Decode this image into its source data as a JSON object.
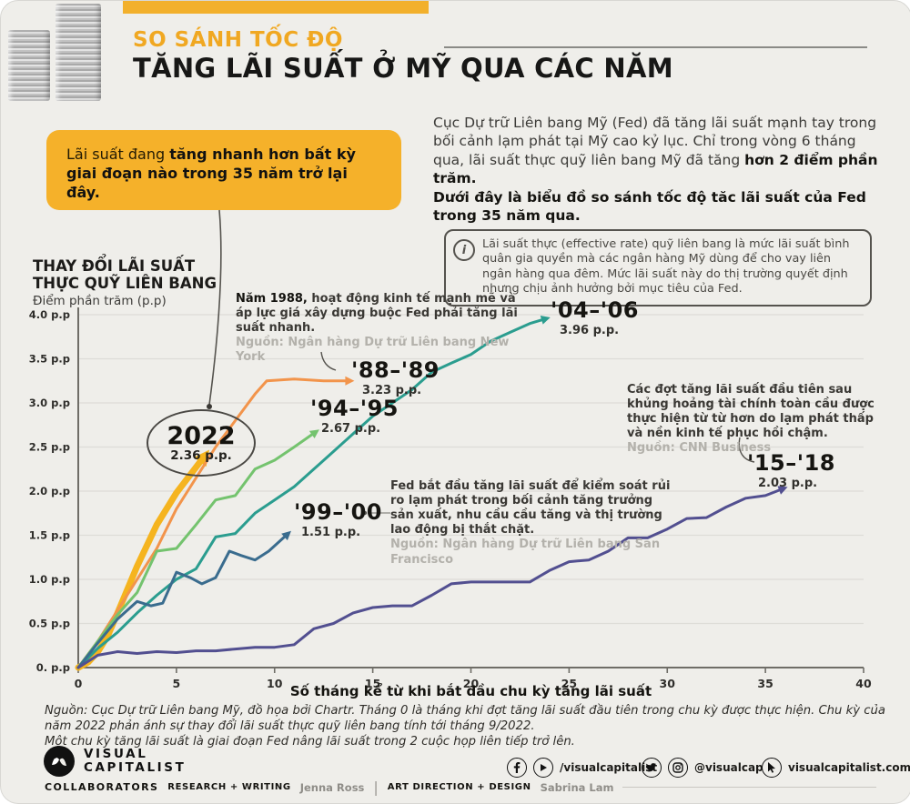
{
  "header": {
    "kicker": "SO SÁNH TỐC ĐỘ",
    "title": "TĂNG LÃI SUẤT Ở MỸ QUA CÁC NĂM"
  },
  "callout": {
    "regular": "Lãi suất đang ",
    "bold": "tăng nhanh hơn bất kỳ giai đoạn nào trong 35 năm trở lại đây."
  },
  "intro": {
    "p1_regular": "Cục Dự trữ Liên bang Mỹ (Fed) đã tăng lãi suất mạnh tay trong bối cảnh lạm phát tại Mỹ cao kỷ lục. Chỉ trong vòng 6 tháng qua, lãi suất thực quỹ liên bang Mỹ đã tăng ",
    "p1_bold": "hơn 2 điểm phần trăm.",
    "p2_bold": "Dưới đây là biểu đồ so sánh tốc độ tăc lãi suất của Fed trong 35 năm qua."
  },
  "infobox": {
    "icon": "i",
    "text": "Lãi suất thực (effective rate) quỹ liên bang là mức lãi suất bình quân gia quyền mà các ngân hàng Mỹ dùng để cho vay liên ngân hàng qua đêm. Mức lãi suất này do thị trường quyết định nhưng chịu ảnh hưởng bởi mục tiêu của Fed."
  },
  "yaxis_title": {
    "line1": "THAY ĐỔI LÃI SUẤT",
    "line2": "THỰC QUỸ LIÊN BANG",
    "sub": "Điểm phần trăm (p.p)"
  },
  "annotations": {
    "y1988": {
      "bold": "Năm 1988,",
      "text": " hoạt động kinh tế mạnh mẽ và áp lực giá xây dựng buộc Fed phải tăng lãi suất nhanh.",
      "source": "Nguồn: Ngân hàng Dự trữ Liên bang New York"
    },
    "gfc": {
      "text": "Các đợt tăng lãi suất đầu tiên sau khủng hoảng tài chính toàn cầu được thực hiện từ từ hơn do lạm phát thấp và nền kinh tế phục hồi chậm.",
      "source": "Nguồn: CNN Business"
    },
    "sf": {
      "text": "Fed bắt đầu tăng lãi suất để kiểm soát rủi ro lạm phát trong bối cảnh tăng trưởng sản xuất, nhu cầu cầu tăng và thị trường lao động bị thắt chặt.",
      "source": "Nguồn: Ngân hàng Dự trữ Liên bang San Francisco"
    }
  },
  "chart_data": {
    "type": "line",
    "title": "So sánh tốc độ tăng lãi suất ở Mỹ qua các năm",
    "xlabel": "Số tháng kể từ khi bắt đầu chu kỳ tăng lãi suất",
    "ylabel": "Điểm phần trăm (p.p)",
    "xlim": [
      0,
      40
    ],
    "ylim": [
      0,
      4
    ],
    "grid": true,
    "xticks": [
      0,
      5,
      10,
      15,
      20,
      25,
      30,
      35,
      40
    ],
    "yticks": [
      {
        "v": 4.0,
        "label": "4.0 p.p"
      },
      {
        "v": 3.5,
        "label": "3.5 p.p"
      },
      {
        "v": 3.0,
        "label": "3.0 p.p"
      },
      {
        "v": 2.5,
        "label": "2.5 p.p"
      },
      {
        "v": 2.0,
        "label": "2.0 p.p"
      },
      {
        "v": 1.5,
        "label": "1.5 p.p"
      },
      {
        "v": 1.0,
        "label": "1.0 p.p"
      },
      {
        "v": 0.5,
        "label": "0.5 p.p"
      },
      {
        "v": 0.0,
        "label": "0. p.p"
      }
    ],
    "series": [
      {
        "name": "2022",
        "label": "2022",
        "value_label": "2.36 p.p.",
        "final_value": 2.36,
        "color": "#f5b41f",
        "width": 7,
        "points": [
          [
            0,
            0
          ],
          [
            0.5,
            0.06
          ],
          [
            1,
            0.18
          ],
          [
            1.5,
            0.36
          ],
          [
            2,
            0.62
          ],
          [
            3,
            1.15
          ],
          [
            4,
            1.62
          ],
          [
            5,
            1.98
          ],
          [
            6.2,
            2.33
          ]
        ]
      },
      {
        "name": "'88–'89",
        "label": "'88–'89",
        "value_label": "3.23 p.p.",
        "final_value": 3.23,
        "color": "#f2944b",
        "width": 3,
        "points": [
          [
            0,
            0
          ],
          [
            1,
            0.3
          ],
          [
            2,
            0.65
          ],
          [
            3,
            1.0
          ],
          [
            4,
            1.35
          ],
          [
            5,
            1.8
          ],
          [
            6,
            2.15
          ],
          [
            7,
            2.5
          ],
          [
            8,
            2.8
          ],
          [
            9,
            3.1
          ],
          [
            9.6,
            3.25
          ],
          [
            11,
            3.27
          ],
          [
            12.5,
            3.25
          ],
          [
            13.6,
            3.25
          ]
        ]
      },
      {
        "name": "'94–'95",
        "label": "'94–'95",
        "value_label": "2.67 p.p.",
        "final_value": 2.67,
        "color": "#74c36e",
        "width": 3,
        "points": [
          [
            0,
            0
          ],
          [
            1,
            0.3
          ],
          [
            2,
            0.6
          ],
          [
            3,
            0.85
          ],
          [
            4,
            1.32
          ],
          [
            5,
            1.35
          ],
          [
            6,
            1.62
          ],
          [
            7,
            1.9
          ],
          [
            8,
            1.95
          ],
          [
            9,
            2.25
          ],
          [
            10,
            2.35
          ],
          [
            11,
            2.5
          ],
          [
            11.9,
            2.64
          ]
        ]
      },
      {
        "name": "'04–'06",
        "label": "'04–'06",
        "value_label": "3.96 p.p.",
        "final_value": 3.96,
        "color": "#2b9d8f",
        "width": 3,
        "points": [
          [
            0,
            0
          ],
          [
            1,
            0.22
          ],
          [
            2,
            0.4
          ],
          [
            3,
            0.62
          ],
          [
            4,
            0.82
          ],
          [
            5,
            1.0
          ],
          [
            6,
            1.12
          ],
          [
            7,
            1.48
          ],
          [
            8,
            1.52
          ],
          [
            9,
            1.75
          ],
          [
            10,
            1.9
          ],
          [
            11,
            2.05
          ],
          [
            12,
            2.25
          ],
          [
            13,
            2.45
          ],
          [
            14,
            2.65
          ],
          [
            15,
            2.85
          ],
          [
            16,
            3.0
          ],
          [
            17,
            3.15
          ],
          [
            18,
            3.35
          ],
          [
            19,
            3.45
          ],
          [
            20,
            3.55
          ],
          [
            21,
            3.7
          ],
          [
            22,
            3.8
          ],
          [
            23,
            3.9
          ],
          [
            23.6,
            3.94
          ]
        ]
      },
      {
        "name": "'99–'00",
        "label": "'99–'00",
        "value_label": "1.51 p.p.",
        "final_value": 1.51,
        "color": "#3a6c8e",
        "width": 3,
        "points": [
          [
            0,
            0
          ],
          [
            1,
            0.28
          ],
          [
            2,
            0.55
          ],
          [
            3,
            0.75
          ],
          [
            3.7,
            0.7
          ],
          [
            4.3,
            0.73
          ],
          [
            5,
            1.08
          ],
          [
            5.7,
            1.02
          ],
          [
            6.3,
            0.95
          ],
          [
            7,
            1.02
          ],
          [
            7.7,
            1.32
          ],
          [
            8.3,
            1.27
          ],
          [
            9,
            1.22
          ],
          [
            9.7,
            1.32
          ],
          [
            10.5,
            1.48
          ]
        ]
      },
      {
        "name": "'15–'18",
        "label": "'15–'18",
        "value_label": "2.03 p.p.",
        "final_value": 2.03,
        "color": "#524f90",
        "width": 3,
        "points": [
          [
            0,
            0
          ],
          [
            1,
            0.14
          ],
          [
            2,
            0.18
          ],
          [
            3,
            0.16
          ],
          [
            4,
            0.18
          ],
          [
            5,
            0.17
          ],
          [
            6,
            0.19
          ],
          [
            7,
            0.19
          ],
          [
            8,
            0.21
          ],
          [
            9,
            0.23
          ],
          [
            10,
            0.23
          ],
          [
            11,
            0.26
          ],
          [
            12,
            0.44
          ],
          [
            13,
            0.5
          ],
          [
            14,
            0.62
          ],
          [
            15,
            0.68
          ],
          [
            16,
            0.7
          ],
          [
            17,
            0.7
          ],
          [
            18,
            0.82
          ],
          [
            19,
            0.95
          ],
          [
            20,
            0.97
          ],
          [
            21,
            0.97
          ],
          [
            22,
            0.97
          ],
          [
            23,
            0.97
          ],
          [
            24,
            1.1
          ],
          [
            25,
            1.2
          ],
          [
            26,
            1.22
          ],
          [
            27,
            1.32
          ],
          [
            28,
            1.47
          ],
          [
            29,
            1.47
          ],
          [
            30,
            1.57
          ],
          [
            31,
            1.69
          ],
          [
            32,
            1.7
          ],
          [
            33,
            1.82
          ],
          [
            34,
            1.92
          ],
          [
            35,
            1.95
          ],
          [
            35.7,
            2.01
          ]
        ]
      }
    ],
    "legend_position": "labels-on-chart"
  },
  "footnote": {
    "p1": "Nguồn: Cục Dự trữ Liên bang Mỹ, đồ họa bởi Chartr. Tháng 0 là tháng khi đợt tăng lãi suất đầu tiên trong chu kỳ được thực hiện. Chu kỳ của năm 2022 phản ánh sự thay đổi lãi suất thực quỹ liên bang tính tới tháng 9/2022.",
    "p2": "Một chu kỳ tăng lãi suất là giai đoạn Fed nâng lãi suất trong 2 cuộc họp liên tiếp trở lên."
  },
  "footer": {
    "logo_line1": "VISUAL",
    "logo_line2": "CAPITALIST",
    "social_fb_handle": "/visualcapitalist",
    "social_ig_handle": "@visualcap",
    "social_web": "visualcapitalist.com",
    "collaborators_label": "COLLABORATORS",
    "research_label": "RESEARCH + WRITING",
    "research_name": "Jenna Ross",
    "divider": "|",
    "art_label": "ART DIRECTION + DESIGN",
    "art_name": "Sabrina Lam"
  },
  "colors": {
    "accent_yellow": "#f2b02c",
    "paper": "#efeeea",
    "kicker": "#f0a822",
    "text_dark": "#171716",
    "source_gray": "#b3b1ab"
  }
}
